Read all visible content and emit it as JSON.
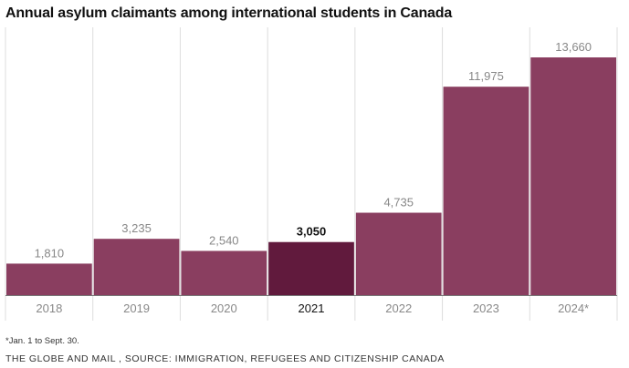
{
  "chart_data": {
    "type": "bar",
    "title": "Annual asylum claimants among international students in Canada",
    "categories": [
      "2018",
      "2019",
      "2020",
      "2021",
      "2022",
      "2023",
      "2024*"
    ],
    "values": [
      1810,
      3235,
      2540,
      3050,
      4735,
      11975,
      13660
    ],
    "value_labels": [
      "1,810",
      "3,235",
      "2,540",
      "3,050",
      "4,735",
      "11,975",
      "13,660"
    ],
    "highlight_index": 3,
    "colors": {
      "bar": "#8a3e60",
      "highlight": "#611a3d",
      "grid": "#dddddd",
      "baseline": "#777777"
    },
    "ylim": [
      0,
      13660
    ],
    "grid": true,
    "xlabel": "",
    "ylabel": ""
  },
  "footnote": "*Jan. 1 to Sept. 30.",
  "source": "THE GLOBE AND MAIL , SOURCE: IMMIGRATION, REFUGEES AND CITIZENSHIP CANADA"
}
